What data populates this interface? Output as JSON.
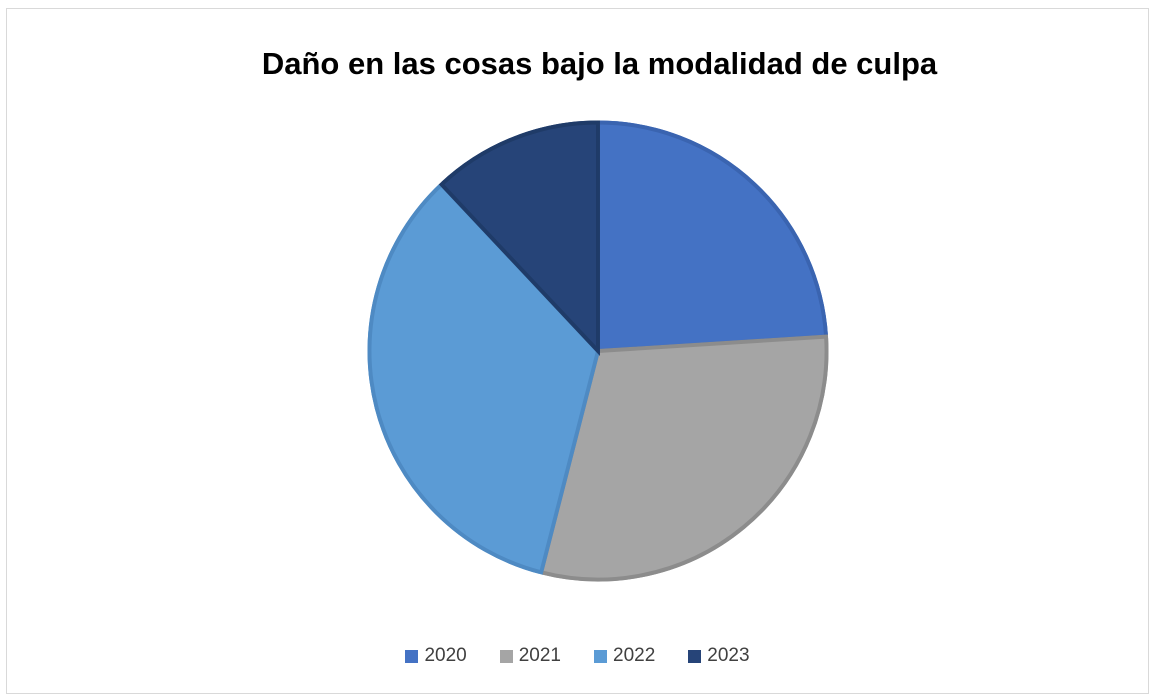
{
  "chart_data": {
    "type": "pie",
    "title": "Daño en las cosas bajo la modalidad de culpa",
    "categories": [
      "2020",
      "2021",
      "2022",
      "2023"
    ],
    "values": [
      24,
      30,
      34,
      12
    ],
    "unit": "percent",
    "colors": [
      "#4472C4",
      "#A5A5A5",
      "#5B9BD5",
      "#264478"
    ],
    "border_colors": [
      "#3A64B0",
      "#8C8C8C",
      "#4E8AC3",
      "#1F3B68"
    ],
    "start_angle_deg": 0,
    "direction": "clockwise",
    "legend": "bottom"
  }
}
